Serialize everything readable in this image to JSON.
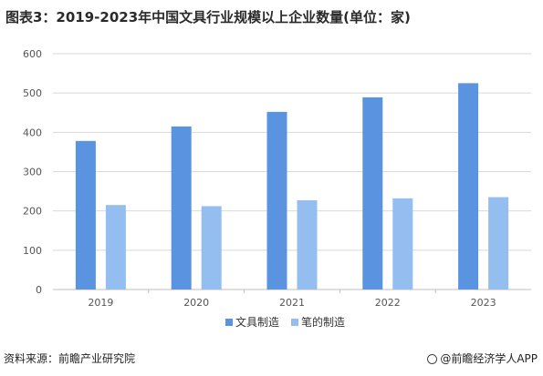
{
  "title": "图表3：2019-2023年中国文具行业规模以上企业数量(单位：家)",
  "footer": {
    "source": "资料来源：前瞻产业研究院",
    "brand": "@前瞻经济学人APP"
  },
  "colors": {
    "series_1": "#5a93e0",
    "series_2": "#94bdf0",
    "grid": "#d9d9d9",
    "axis": "#bfbfbf"
  },
  "chart_data": {
    "type": "bar",
    "title": "图表3：2019-2023年中国文具行业规模以上企业数量(单位：家)",
    "categories": [
      "2019",
      "2020",
      "2021",
      "2022",
      "2023"
    ],
    "series": [
      {
        "name": "文具制造",
        "values": [
          378,
          415,
          452,
          489,
          525
        ]
      },
      {
        "name": "笔的制造",
        "values": [
          215,
          212,
          227,
          232,
          235
        ]
      }
    ],
    "ylim": [
      0,
      600
    ],
    "yticks": [
      0,
      100,
      200,
      300,
      400,
      500,
      600
    ],
    "xlabel": "",
    "ylabel": "",
    "grid": "horizontal",
    "legend": "bottom-center"
  }
}
